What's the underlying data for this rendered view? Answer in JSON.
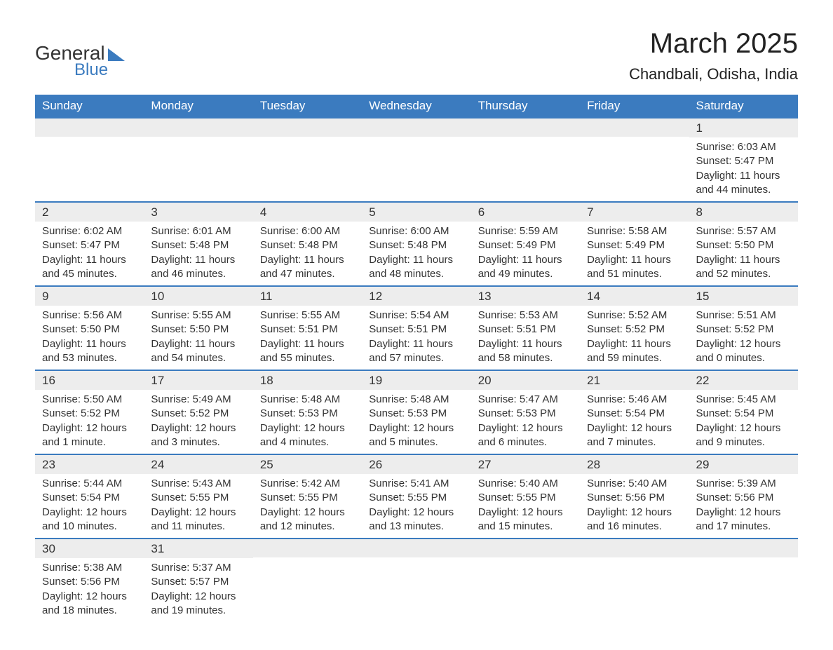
{
  "logo": {
    "text_general": "General",
    "text_blue": "Blue",
    "primary_color": "#3b7bbf"
  },
  "header": {
    "month_title": "March 2025",
    "location": "Chandbali, Odisha, India"
  },
  "styling": {
    "header_bg": "#3b7bbf",
    "header_text": "#ffffff",
    "daynum_bg": "#ededed",
    "text_color": "#333333",
    "row_border_color": "#3b7bbf",
    "body_bg": "#ffffff",
    "month_title_fontsize": 40,
    "location_fontsize": 22,
    "header_fontsize": 17,
    "daynum_fontsize": 17,
    "content_fontsize": 15
  },
  "day_headers": [
    "Sunday",
    "Monday",
    "Tuesday",
    "Wednesday",
    "Thursday",
    "Friday",
    "Saturday"
  ],
  "weeks": [
    [
      {
        "day": "",
        "sunrise": "",
        "sunset": "",
        "daylight": ""
      },
      {
        "day": "",
        "sunrise": "",
        "sunset": "",
        "daylight": ""
      },
      {
        "day": "",
        "sunrise": "",
        "sunset": "",
        "daylight": ""
      },
      {
        "day": "",
        "sunrise": "",
        "sunset": "",
        "daylight": ""
      },
      {
        "day": "",
        "sunrise": "",
        "sunset": "",
        "daylight": ""
      },
      {
        "day": "",
        "sunrise": "",
        "sunset": "",
        "daylight": ""
      },
      {
        "day": "1",
        "sunrise": "Sunrise: 6:03 AM",
        "sunset": "Sunset: 5:47 PM",
        "daylight": "Daylight: 11 hours and 44 minutes."
      }
    ],
    [
      {
        "day": "2",
        "sunrise": "Sunrise: 6:02 AM",
        "sunset": "Sunset: 5:47 PM",
        "daylight": "Daylight: 11 hours and 45 minutes."
      },
      {
        "day": "3",
        "sunrise": "Sunrise: 6:01 AM",
        "sunset": "Sunset: 5:48 PM",
        "daylight": "Daylight: 11 hours and 46 minutes."
      },
      {
        "day": "4",
        "sunrise": "Sunrise: 6:00 AM",
        "sunset": "Sunset: 5:48 PM",
        "daylight": "Daylight: 11 hours and 47 minutes."
      },
      {
        "day": "5",
        "sunrise": "Sunrise: 6:00 AM",
        "sunset": "Sunset: 5:48 PM",
        "daylight": "Daylight: 11 hours and 48 minutes."
      },
      {
        "day": "6",
        "sunrise": "Sunrise: 5:59 AM",
        "sunset": "Sunset: 5:49 PM",
        "daylight": "Daylight: 11 hours and 49 minutes."
      },
      {
        "day": "7",
        "sunrise": "Sunrise: 5:58 AM",
        "sunset": "Sunset: 5:49 PM",
        "daylight": "Daylight: 11 hours and 51 minutes."
      },
      {
        "day": "8",
        "sunrise": "Sunrise: 5:57 AM",
        "sunset": "Sunset: 5:50 PM",
        "daylight": "Daylight: 11 hours and 52 minutes."
      }
    ],
    [
      {
        "day": "9",
        "sunrise": "Sunrise: 5:56 AM",
        "sunset": "Sunset: 5:50 PM",
        "daylight": "Daylight: 11 hours and 53 minutes."
      },
      {
        "day": "10",
        "sunrise": "Sunrise: 5:55 AM",
        "sunset": "Sunset: 5:50 PM",
        "daylight": "Daylight: 11 hours and 54 minutes."
      },
      {
        "day": "11",
        "sunrise": "Sunrise: 5:55 AM",
        "sunset": "Sunset: 5:51 PM",
        "daylight": "Daylight: 11 hours and 55 minutes."
      },
      {
        "day": "12",
        "sunrise": "Sunrise: 5:54 AM",
        "sunset": "Sunset: 5:51 PM",
        "daylight": "Daylight: 11 hours and 57 minutes."
      },
      {
        "day": "13",
        "sunrise": "Sunrise: 5:53 AM",
        "sunset": "Sunset: 5:51 PM",
        "daylight": "Daylight: 11 hours and 58 minutes."
      },
      {
        "day": "14",
        "sunrise": "Sunrise: 5:52 AM",
        "sunset": "Sunset: 5:52 PM",
        "daylight": "Daylight: 11 hours and 59 minutes."
      },
      {
        "day": "15",
        "sunrise": "Sunrise: 5:51 AM",
        "sunset": "Sunset: 5:52 PM",
        "daylight": "Daylight: 12 hours and 0 minutes."
      }
    ],
    [
      {
        "day": "16",
        "sunrise": "Sunrise: 5:50 AM",
        "sunset": "Sunset: 5:52 PM",
        "daylight": "Daylight: 12 hours and 1 minute."
      },
      {
        "day": "17",
        "sunrise": "Sunrise: 5:49 AM",
        "sunset": "Sunset: 5:52 PM",
        "daylight": "Daylight: 12 hours and 3 minutes."
      },
      {
        "day": "18",
        "sunrise": "Sunrise: 5:48 AM",
        "sunset": "Sunset: 5:53 PM",
        "daylight": "Daylight: 12 hours and 4 minutes."
      },
      {
        "day": "19",
        "sunrise": "Sunrise: 5:48 AM",
        "sunset": "Sunset: 5:53 PM",
        "daylight": "Daylight: 12 hours and 5 minutes."
      },
      {
        "day": "20",
        "sunrise": "Sunrise: 5:47 AM",
        "sunset": "Sunset: 5:53 PM",
        "daylight": "Daylight: 12 hours and 6 minutes."
      },
      {
        "day": "21",
        "sunrise": "Sunrise: 5:46 AM",
        "sunset": "Sunset: 5:54 PM",
        "daylight": "Daylight: 12 hours and 7 minutes."
      },
      {
        "day": "22",
        "sunrise": "Sunrise: 5:45 AM",
        "sunset": "Sunset: 5:54 PM",
        "daylight": "Daylight: 12 hours and 9 minutes."
      }
    ],
    [
      {
        "day": "23",
        "sunrise": "Sunrise: 5:44 AM",
        "sunset": "Sunset: 5:54 PM",
        "daylight": "Daylight: 12 hours and 10 minutes."
      },
      {
        "day": "24",
        "sunrise": "Sunrise: 5:43 AM",
        "sunset": "Sunset: 5:55 PM",
        "daylight": "Daylight: 12 hours and 11 minutes."
      },
      {
        "day": "25",
        "sunrise": "Sunrise: 5:42 AM",
        "sunset": "Sunset: 5:55 PM",
        "daylight": "Daylight: 12 hours and 12 minutes."
      },
      {
        "day": "26",
        "sunrise": "Sunrise: 5:41 AM",
        "sunset": "Sunset: 5:55 PM",
        "daylight": "Daylight: 12 hours and 13 minutes."
      },
      {
        "day": "27",
        "sunrise": "Sunrise: 5:40 AM",
        "sunset": "Sunset: 5:55 PM",
        "daylight": "Daylight: 12 hours and 15 minutes."
      },
      {
        "day": "28",
        "sunrise": "Sunrise: 5:40 AM",
        "sunset": "Sunset: 5:56 PM",
        "daylight": "Daylight: 12 hours and 16 minutes."
      },
      {
        "day": "29",
        "sunrise": "Sunrise: 5:39 AM",
        "sunset": "Sunset: 5:56 PM",
        "daylight": "Daylight: 12 hours and 17 minutes."
      }
    ],
    [
      {
        "day": "30",
        "sunrise": "Sunrise: 5:38 AM",
        "sunset": "Sunset: 5:56 PM",
        "daylight": "Daylight: 12 hours and 18 minutes."
      },
      {
        "day": "31",
        "sunrise": "Sunrise: 5:37 AM",
        "sunset": "Sunset: 5:57 PM",
        "daylight": "Daylight: 12 hours and 19 minutes."
      },
      {
        "day": "",
        "sunrise": "",
        "sunset": "",
        "daylight": ""
      },
      {
        "day": "",
        "sunrise": "",
        "sunset": "",
        "daylight": ""
      },
      {
        "day": "",
        "sunrise": "",
        "sunset": "",
        "daylight": ""
      },
      {
        "day": "",
        "sunrise": "",
        "sunset": "",
        "daylight": ""
      },
      {
        "day": "",
        "sunrise": "",
        "sunset": "",
        "daylight": ""
      }
    ]
  ]
}
